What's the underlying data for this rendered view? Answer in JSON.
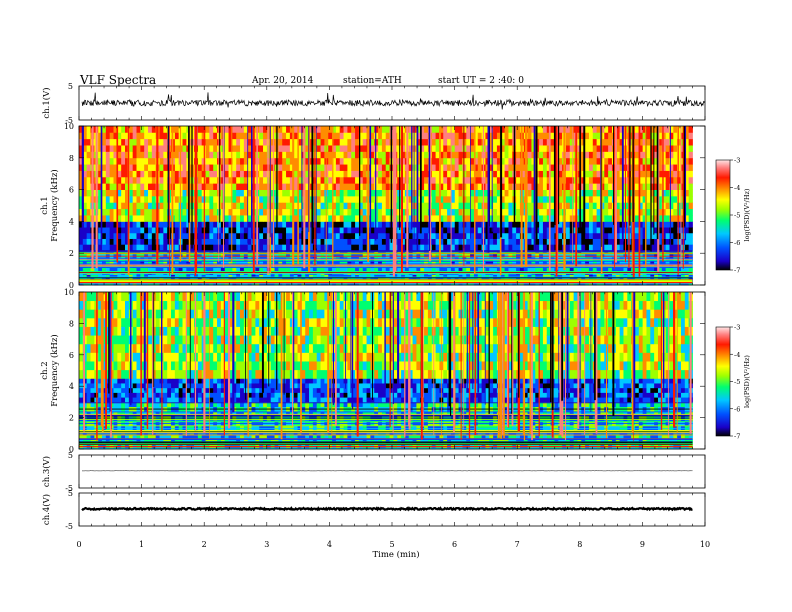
{
  "header": {
    "title": "VLF  Spectra",
    "date": "Apr. 20, 2014",
    "station": "station=ATH",
    "start": "start  UT  =   2 :40: 0"
  },
  "colors": {
    "scale": [
      "#000000",
      "#1a00c8",
      "#0050ff",
      "#00c8ff",
      "#00ff70",
      "#9cff00",
      "#ffff00",
      "#ff8c00",
      "#ff1a00",
      "#ff7f7f",
      "#ffe6e6"
    ]
  },
  "chart_data": [
    {
      "type": "line",
      "panel": "ch1-waveform",
      "ylabel": "ch.1(V)",
      "ylim": [
        -5,
        5
      ],
      "yticks": [
        "5",
        "-5"
      ],
      "xlim": [
        0,
        10
      ],
      "mean_level": 0,
      "amplitude": 1.5
    },
    {
      "type": "heatmap",
      "panel": "ch1-spectrogram",
      "ylabel": "ch.1\nFrequency  (kHz)",
      "ylim": [
        0,
        10
      ],
      "yticks": [
        "0",
        "2",
        "4",
        "6",
        "8",
        "10"
      ],
      "xlim": [
        0,
        9.8
      ],
      "colorbar": {
        "label": "log(PSD)(V²/Hz)",
        "range": [
          -7,
          -3
        ],
        "ticks": [
          "-3",
          "-4",
          "-5",
          "-6",
          "-7"
        ]
      },
      "bands": [
        {
          "f_min": 0,
          "f_max": 2.2,
          "log_psd": -5.5,
          "description": "horizontal line bands"
        },
        {
          "f_min": 2.2,
          "f_max": 4,
          "log_psd": -6.2
        },
        {
          "f_min": 4,
          "f_max": 6,
          "log_psd": -4.5
        },
        {
          "f_min": 6,
          "f_max": 10,
          "log_psd": -3.8
        }
      ]
    },
    {
      "type": "heatmap",
      "panel": "ch2-spectrogram",
      "ylabel": "ch.2\nFrequency  (kHz)",
      "ylim": [
        0,
        10
      ],
      "yticks": [
        "0",
        "2",
        "4",
        "6",
        "8",
        "10"
      ],
      "xlim": [
        0,
        9.8
      ],
      "colorbar": {
        "label": "log(PSD)(V²/Hz)",
        "range": [
          -7,
          -3
        ],
        "ticks": [
          "-3",
          "-4",
          "-5",
          "-6",
          "-7"
        ]
      },
      "bands": [
        {
          "f_min": 0,
          "f_max": 3,
          "log_psd": -5.3,
          "description": "horizontal line bands"
        },
        {
          "f_min": 3,
          "f_max": 4.5,
          "log_psd": -6.0
        },
        {
          "f_min": 4.5,
          "f_max": 10,
          "log_psd": -4.6
        }
      ]
    },
    {
      "type": "line",
      "panel": "ch3-waveform",
      "ylabel": "ch.3(V)",
      "ylim": [
        -5,
        5
      ],
      "yticks": [
        "5",
        "-5"
      ],
      "xlim": [
        0,
        9.8
      ],
      "mean_level": 0.2,
      "amplitude": 0.05
    },
    {
      "type": "line",
      "panel": "ch4-waveform",
      "ylabel": "ch.4(V)",
      "ylim": [
        -5,
        5
      ],
      "yticks": [
        "5",
        "-5"
      ],
      "xlim": [
        0,
        9.8
      ],
      "mean_level": 0.2,
      "amplitude": 0.25
    }
  ],
  "xaxis": {
    "label": "Time  (min)",
    "range": [
      0,
      10
    ],
    "ticks": [
      "0",
      "1",
      "2",
      "3",
      "4",
      "5",
      "6",
      "7",
      "8",
      "9",
      "10"
    ]
  }
}
